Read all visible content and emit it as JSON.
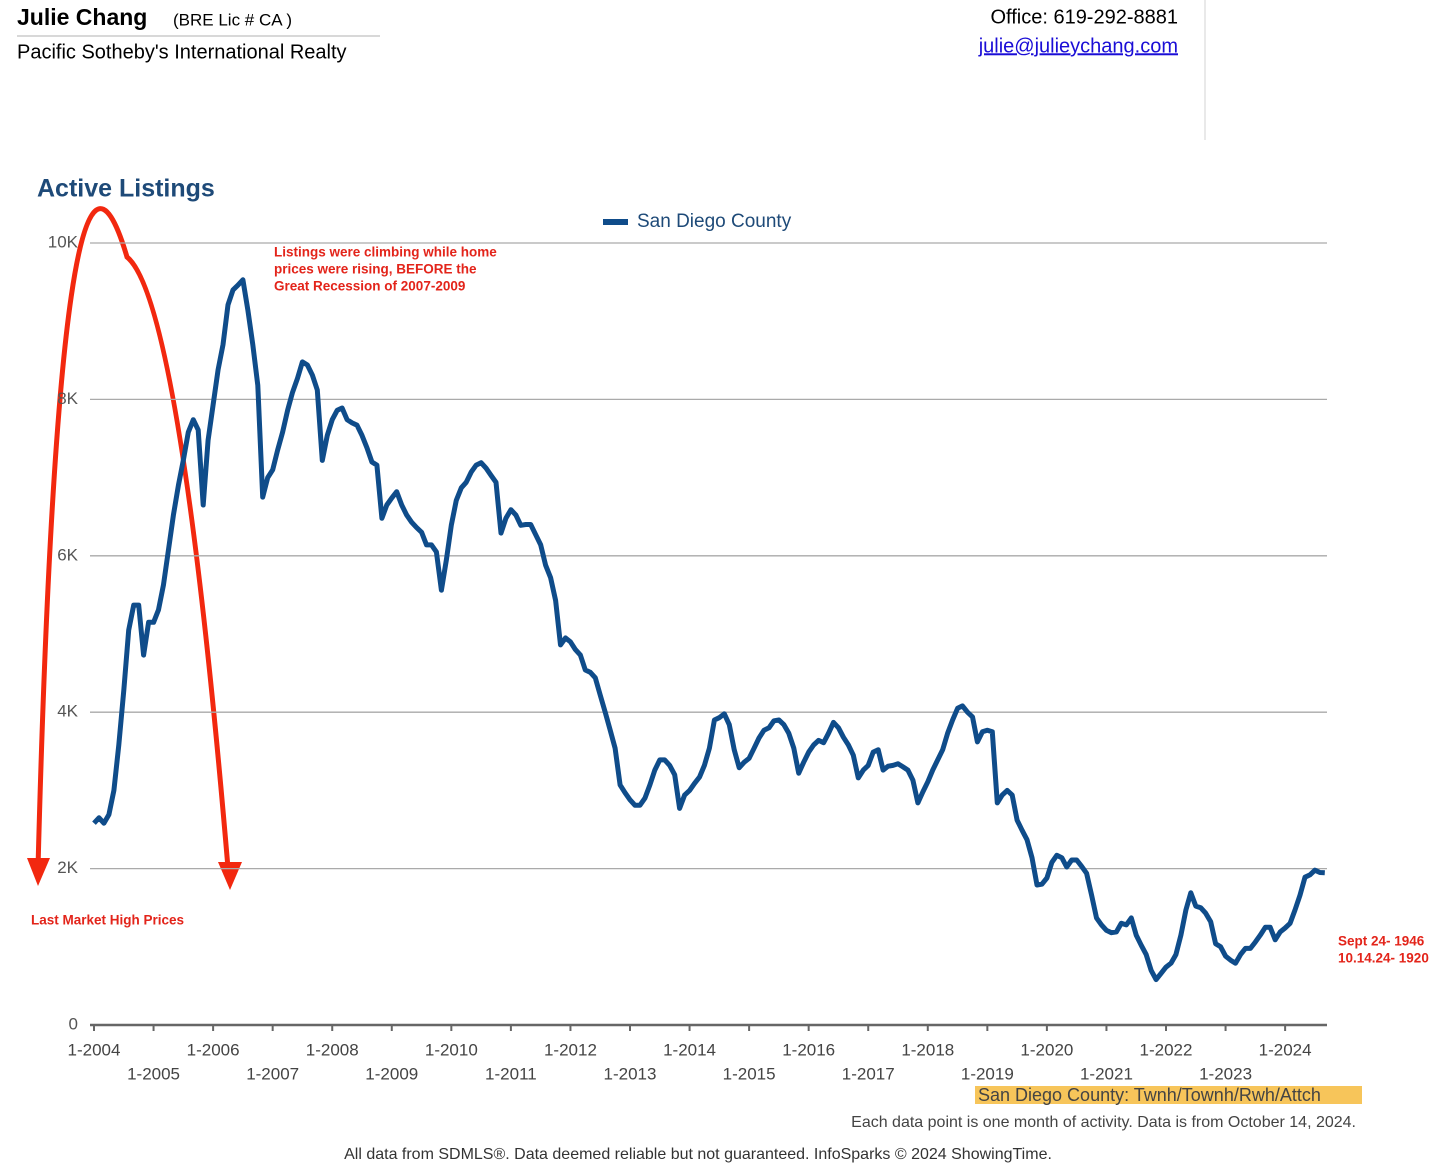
{
  "header": {
    "name": "Julie Chang",
    "license": "(BRE Lic # CA )",
    "company": "Pacific Sotheby's International Realty",
    "office": "Office: 619-292-8881",
    "email": "julie@julieychang.com"
  },
  "chart_data": {
    "type": "line",
    "title": "Active Listings",
    "categories": [
      "1-2004",
      null,
      null,
      null,
      null,
      null,
      null,
      null,
      null,
      null,
      null,
      null,
      "1-2005",
      null,
      null,
      null,
      null,
      null,
      null,
      null,
      null,
      null,
      null,
      null,
      "1-2006",
      null,
      null,
      null,
      null,
      null,
      null,
      null,
      null,
      null,
      null,
      null,
      "1-2007",
      null,
      null,
      null,
      null,
      null,
      null,
      null,
      null,
      null,
      null,
      null,
      "1-2008",
      null,
      null,
      null,
      null,
      null,
      null,
      null,
      null,
      null,
      null,
      null,
      "1-2009",
      null,
      null,
      null,
      null,
      null,
      null,
      null,
      null,
      null,
      null,
      null,
      "1-2010",
      null,
      null,
      null,
      null,
      null,
      null,
      null,
      null,
      null,
      null,
      null,
      "1-2011",
      null,
      null,
      null,
      null,
      null,
      null,
      null,
      null,
      null,
      null,
      null,
      "1-2012",
      null,
      null,
      null,
      null,
      null,
      null,
      null,
      null,
      null,
      null,
      null,
      "1-2013",
      null,
      null,
      null,
      null,
      null,
      null,
      null,
      null,
      null,
      null,
      null,
      "1-2014",
      null,
      null,
      null,
      null,
      null,
      null,
      null,
      null,
      null,
      null,
      null,
      "1-2015",
      null,
      null,
      null,
      null,
      null,
      null,
      null,
      null,
      null,
      null,
      null,
      "1-2016",
      null,
      null,
      null,
      null,
      null,
      null,
      null,
      null,
      null,
      null,
      null,
      "1-2017",
      null,
      null,
      null,
      null,
      null,
      null,
      null,
      null,
      null,
      null,
      null,
      "1-2018",
      null,
      null,
      null,
      null,
      null,
      null,
      null,
      null,
      null,
      null,
      null,
      "1-2019",
      null,
      null,
      null,
      null,
      null,
      null,
      null,
      null,
      null,
      null,
      null,
      "1-2020",
      null,
      null,
      null,
      null,
      null,
      null,
      null,
      null,
      null,
      null,
      null,
      "1-2021",
      null,
      null,
      null,
      null,
      null,
      null,
      null,
      null,
      null,
      null,
      null,
      "1-2022",
      null,
      null,
      null,
      null,
      null,
      null,
      null,
      null,
      null,
      null,
      null,
      "1-2023",
      null,
      null,
      null,
      null,
      null,
      null,
      null,
      null,
      null,
      null,
      null,
      "1-2024",
      null,
      null,
      null,
      null,
      null,
      null,
      null,
      null
    ],
    "series": [
      {
        "name": "San Diego County",
        "color": "#0f4c8a",
        "values": [
          2580,
          2650,
          2580,
          2690,
          3000,
          3580,
          4280,
          5050,
          5370,
          5370,
          4730,
          5150,
          5150,
          5310,
          5630,
          6070,
          6520,
          6900,
          7220,
          7580,
          7740,
          7610,
          6650,
          7480,
          7930,
          8380,
          8700,
          9210,
          9400,
          9460,
          9530,
          9140,
          8700,
          8180,
          6750,
          7000,
          7100,
          7350,
          7580,
          7860,
          8090,
          8270,
          8480,
          8440,
          8310,
          8120,
          7220,
          7540,
          7740,
          7860,
          7890,
          7740,
          7700,
          7670,
          7540,
          7380,
          7200,
          7160,
          6480,
          6650,
          6740,
          6820,
          6650,
          6520,
          6430,
          6360,
          6300,
          6140,
          6140,
          6050,
          5560,
          5950,
          6390,
          6710,
          6870,
          6940,
          7070,
          7160,
          7190,
          7120,
          7030,
          6940,
          6290,
          6480,
          6590,
          6520,
          6390,
          6400,
          6400,
          6270,
          6140,
          5880,
          5720,
          5430,
          4860,
          4950,
          4900,
          4800,
          4730,
          4540,
          4510,
          4440,
          4220,
          4000,
          3770,
          3540,
          3070,
          2970,
          2880,
          2810,
          2810,
          2900,
          3070,
          3260,
          3390,
          3390,
          3320,
          3200,
          2770,
          2940,
          3000,
          3090,
          3170,
          3320,
          3540,
          3900,
          3930,
          3980,
          3840,
          3520,
          3290,
          3360,
          3410,
          3540,
          3670,
          3770,
          3800,
          3890,
          3900,
          3840,
          3730,
          3540,
          3220,
          3360,
          3490,
          3580,
          3640,
          3610,
          3730,
          3870,
          3800,
          3680,
          3580,
          3450,
          3160,
          3260,
          3320,
          3490,
          3520,
          3260,
          3310,
          3320,
          3340,
          3300,
          3260,
          3130,
          2840,
          2980,
          3110,
          3260,
          3390,
          3520,
          3730,
          3900,
          4050,
          4080,
          4000,
          3940,
          3620,
          3750,
          3770,
          3750,
          2840,
          2940,
          3000,
          2940,
          2620,
          2490,
          2370,
          2140,
          1790,
          1800,
          1880,
          2080,
          2170,
          2140,
          2020,
          2110,
          2110,
          2030,
          1940,
          1660,
          1370,
          1280,
          1210,
          1180,
          1190,
          1300,
          1280,
          1370,
          1150,
          1020,
          900,
          700,
          580,
          660,
          740,
          790,
          900,
          1150,
          1470,
          1690,
          1520,
          1500,
          1430,
          1320,
          1040,
          1000,
          880,
          830,
          790,
          900,
          980,
          980,
          1060,
          1150,
          1250,
          1250,
          1090,
          1190,
          1240,
          1300,
          1470,
          1660,
          1890,
          1920,
          1980,
          1950,
          1946
        ]
      }
    ],
    "ylim": [
      0,
      10000
    ],
    "yticks": [
      0,
      {
        "value": 2000,
        "label": "2K"
      },
      {
        "value": 4000,
        "label": "4K"
      },
      {
        "value": 6000,
        "label": "6K"
      },
      {
        "value": 8000,
        "label": "8K"
      },
      {
        "value": 10000,
        "label": "10K"
      }
    ],
    "grid": true,
    "legend": "top",
    "annotations": {
      "rise": [
        "Listings were climbing while home",
        "prices were rising, BEFORE the",
        "Great Recession of 2007-2009"
      ],
      "high": "Last Market High Prices",
      "latest": [
        "Sept 24- 1946",
        "10.14.24- 1920"
      ]
    },
    "subtitle": "San Diego County: Twnh/Townh/Rwh/Attch",
    "footnote": "Each data point is one month of activity. Data is from October 14, 2024.",
    "source": "All data from SDMLS®. Data deemed reliable but not guaranteed. InfoSparks © 2024 ShowingTime."
  }
}
